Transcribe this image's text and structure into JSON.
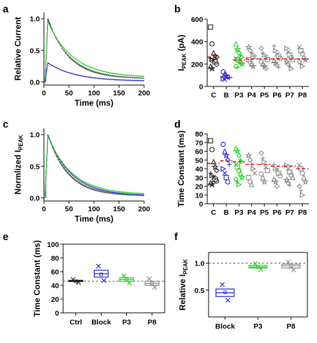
{
  "colors": {
    "control": "#222222",
    "block": "#2222cc",
    "p3": "#22cc22",
    "others": "#888888",
    "mean_line": "#dd1111",
    "ref_line": "#555555"
  },
  "panels": {
    "a": {
      "label": "a"
    },
    "b": {
      "label": "b"
    },
    "c": {
      "label": "c"
    },
    "d": {
      "label": "d"
    },
    "e": {
      "label": "e"
    },
    "f": {
      "label": "f"
    }
  },
  "chart_data": [
    {
      "id": "a",
      "type": "line",
      "xlabel": "Time (ms)",
      "ylabel": "Relative Current",
      "xlim": [
        0,
        200
      ],
      "ylim": [
        -0.05,
        1.1
      ],
      "xticks": [
        "0",
        "50",
        "100",
        "150",
        "200"
      ],
      "yticks": [
        "0.0",
        "0.5",
        "1.0"
      ],
      "series": [
        {
          "color": "control",
          "peak": 1.0,
          "tau": 42,
          "end": 0.05
        },
        {
          "color": "others",
          "peak": 0.97,
          "tau": 45,
          "end": 0.05
        },
        {
          "color": "p3",
          "peak": 0.95,
          "tau": 50,
          "end": 0.07
        },
        {
          "color": "block",
          "peak": 0.3,
          "tau": 55,
          "end": 0.01
        }
      ]
    },
    {
      "id": "b",
      "type": "scatter",
      "ylabel": "I_PEAK (pA)",
      "ylim": [
        0,
        600
      ],
      "yticks": [
        "0",
        "200",
        "400",
        "600"
      ],
      "categories": [
        "C",
        "B",
        "P3",
        "P4",
        "P5",
        "P6",
        "P7",
        "P8"
      ],
      "means": [
        262,
        80,
        235,
        245,
        245,
        245,
        245,
        245
      ],
      "points": [
        [
          530,
          380,
          300,
          270,
          260,
          250,
          240,
          230,
          220,
          200,
          180,
          160
        ],
        [
          130,
          110,
          95,
          85,
          75,
          70,
          60
        ],
        [
          380,
          330,
          300,
          280,
          260,
          250,
          240,
          230,
          220,
          200,
          180,
          170
        ],
        [
          350,
          320,
          300,
          280,
          260,
          240,
          220,
          200,
          180
        ],
        [
          340,
          300,
          280,
          260,
          240,
          220,
          200,
          180,
          160
        ],
        [
          360,
          320,
          290,
          270,
          250,
          230,
          210,
          190,
          170
        ],
        [
          340,
          310,
          280,
          260,
          240,
          220,
          200,
          180,
          160
        ],
        [
          350,
          320,
          290,
          260,
          240,
          220,
          200,
          180
        ]
      ]
    },
    {
      "id": "c",
      "type": "line",
      "xlabel": "Time (ms)",
      "ylabel": "Normlized I_PEAK",
      "xlim": [
        0,
        200
      ],
      "ylim": [
        -0.05,
        1.1
      ],
      "xticks": [
        "0",
        "50",
        "100",
        "150",
        "200"
      ],
      "yticks": [
        "0.0",
        "0.5",
        "1.0"
      ],
      "series": [
        {
          "color": "control",
          "peak": 1.0,
          "tau": 40,
          "end": 0.03
        },
        {
          "color": "others",
          "peak": 1.0,
          "tau": 42,
          "end": 0.03
        },
        {
          "color": "block",
          "peak": 1.0,
          "tau": 46,
          "end": 0.03
        },
        {
          "color": "p3",
          "peak": 0.98,
          "tau": 48,
          "end": 0.05
        }
      ]
    },
    {
      "id": "d",
      "type": "scatter",
      "ylabel": "Time Constant (ms)",
      "ylim": [
        0,
        80
      ],
      "yticks": [
        "0",
        "10",
        "20",
        "30",
        "40",
        "50",
        "60",
        "70",
        "80"
      ],
      "categories": [
        "C",
        "B",
        "P3",
        "P4",
        "P5",
        "P6",
        "P7",
        "P8"
      ],
      "means": [
        46,
        49,
        48,
        45,
        45,
        43,
        43,
        40
      ],
      "points": [
        [
          72,
          62,
          48,
          42,
          38,
          35,
          32,
          30,
          28,
          26,
          24,
          22
        ],
        [
          68,
          60,
          55,
          50,
          45,
          40,
          35,
          30,
          25
        ],
        [
          63,
          60,
          55,
          50,
          48,
          45,
          42,
          38,
          35,
          30,
          28,
          25,
          22
        ],
        [
          55,
          50,
          45,
          40,
          35,
          30,
          25,
          22
        ],
        [
          58,
          52,
          48,
          42,
          38,
          34,
          30,
          25
        ],
        [
          45,
          40,
          38,
          35,
          32,
          28,
          25,
          20
        ],
        [
          44,
          40,
          36,
          33,
          30,
          27,
          24,
          21
        ],
        [
          44,
          40,
          35,
          30,
          25,
          20,
          15,
          10
        ]
      ]
    },
    {
      "id": "e",
      "type": "box",
      "ylabel": "Time Constant (ms)",
      "ylim": [
        0,
        100
      ],
      "yticks": [
        "0",
        "20",
        "40",
        "60",
        "80",
        "100"
      ],
      "categories": [
        "Ctrl",
        "Block",
        "P3",
        "P8"
      ],
      "reference": 46,
      "boxes": [
        {
          "q1": 45.5,
          "median": 46.5,
          "q3": 47.5,
          "mean": 46,
          "color": "control"
        },
        {
          "q1": 52,
          "median": 57,
          "q3": 62,
          "mean": 56,
          "color": "block"
        },
        {
          "q1": 46,
          "median": 48.5,
          "q3": 51,
          "mean": 48.5,
          "color": "p3"
        },
        {
          "q1": 40,
          "median": 43,
          "q3": 46,
          "mean": 43,
          "color": "others"
        }
      ]
    },
    {
      "id": "f",
      "type": "box",
      "ylabel": "Relative I_PEAK",
      "ylim": [
        0,
        1.2
      ],
      "yticks": [
        "0.5",
        "1.0"
      ],
      "categories": [
        "Block",
        "P3",
        "P8"
      ],
      "reference": 1.0,
      "boxes": [
        {
          "q1": 0.38,
          "median": 0.45,
          "q3": 0.52,
          "mean": 0.46,
          "color": "block"
        },
        {
          "q1": 0.91,
          "median": 0.93,
          "q3": 0.96,
          "mean": 0.93,
          "color": "p3"
        },
        {
          "q1": 0.91,
          "median": 0.95,
          "q3": 0.98,
          "mean": 0.95,
          "color": "others"
        }
      ]
    }
  ]
}
